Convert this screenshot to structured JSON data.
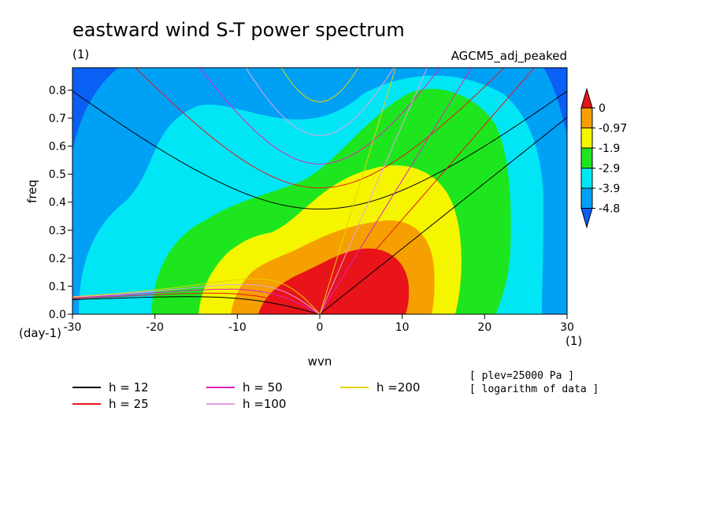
{
  "chart_data": {
    "type": "heatmap",
    "title": "eastward wind S-T power spectrum",
    "subtitle_left": "(1)",
    "subtitle_right": "AGCM5_adj_peaked",
    "xlabel": "wvn",
    "ylabel": "freq",
    "x_unit": "(1)",
    "y_unit": "(day-1)",
    "xlim": [
      -30,
      30
    ],
    "ylim": [
      0,
      0.88
    ],
    "x_ticks": [
      -30,
      -20,
      -10,
      0,
      10,
      20,
      30
    ],
    "y_ticks": [
      0.0,
      0.1,
      0.2,
      0.3,
      0.4,
      0.5,
      0.6,
      0.7,
      0.8
    ],
    "colorbar": {
      "levels": [
        "0",
        "-0.97",
        "-1.9",
        "-2.9",
        "-3.9",
        "-4.8"
      ],
      "colors": [
        "#e8141a",
        "#f5a000",
        "#f5f500",
        "#1ee61e",
        "#00e6f5",
        "#00a0f5",
        "#0a5ff5"
      ]
    },
    "equivalent_depth_lines": [
      {
        "label": "h = 12",
        "h": 12,
        "color": "#000000"
      },
      {
        "label": "h = 25",
        "h": 25,
        "color": "#e8141a"
      },
      {
        "label": "h = 50",
        "h": 50,
        "color": "#e020c0"
      },
      {
        "label": "h =100",
        "h": 100,
        "color": "#e6a0e6"
      },
      {
        "label": "h =200",
        "h": 200,
        "color": "#e6d200"
      }
    ],
    "notes": [
      "[ plev=25000 Pa ]",
      "[ logarithm of data ]"
    ]
  }
}
